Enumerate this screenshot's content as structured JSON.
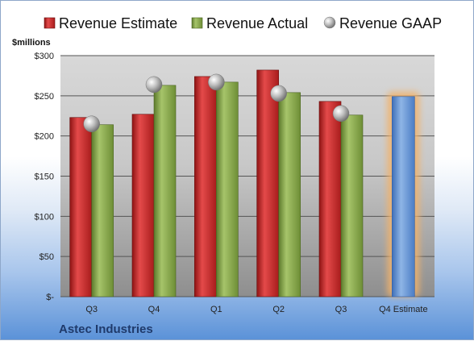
{
  "chart_data": {
    "type": "bar",
    "categories": [
      "Q3",
      "Q4",
      "Q1",
      "Q2",
      "Q3",
      "Q4 Estimate"
    ],
    "series": [
      {
        "name": "Revenue Estimate",
        "values": [
          223,
          227,
          274,
          282,
          243,
          null
        ],
        "color": "#c42a2a"
      },
      {
        "name": "Revenue Actual",
        "values": [
          214,
          263,
          267,
          254,
          226,
          null
        ],
        "color": "#86a548"
      },
      {
        "name": "Revenue GAAP",
        "values": [
          215,
          264,
          267,
          253,
          228,
          null
        ],
        "marker": "sphere",
        "color": "#b8b8b8"
      }
    ],
    "forecast": {
      "category": "Q4 Estimate",
      "value": 249,
      "color": "#6f9bd6",
      "glow": "#f2b26a"
    },
    "ylabel": "$millions",
    "ylim": [
      0,
      300
    ],
    "yticks": [
      {
        "value": 0,
        "label": "$-"
      },
      {
        "value": 50,
        "label": "$50"
      },
      {
        "value": 100,
        "label": "$100"
      },
      {
        "value": 150,
        "label": "$150"
      },
      {
        "value": 200,
        "label": "$200"
      },
      {
        "value": 250,
        "label": "$250"
      },
      {
        "value": 300,
        "label": "$300"
      }
    ],
    "grid": true,
    "legend": "top",
    "footer": "Astec Industries"
  }
}
